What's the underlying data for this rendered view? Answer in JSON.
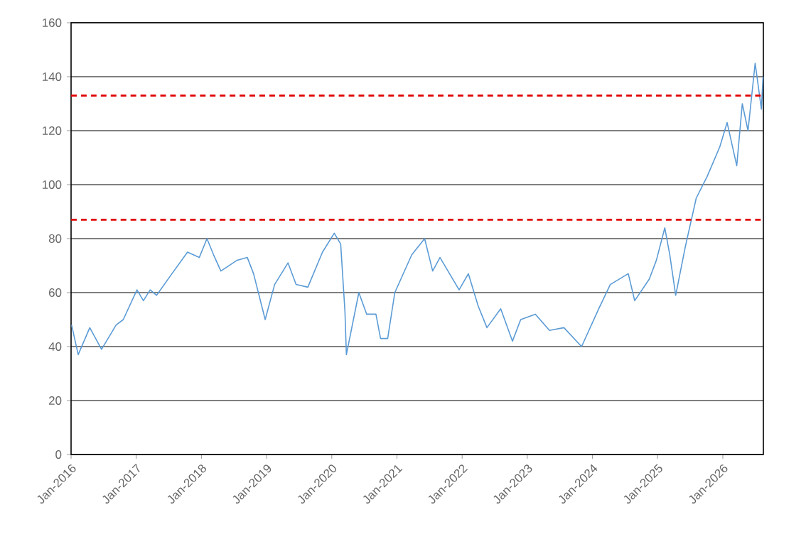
{
  "chart_data": {
    "type": "line",
    "x": [
      "2016-01-04",
      "2016-02-10",
      "2016-04-15",
      "2016-06-20",
      "2016-09-10",
      "2016-10-20",
      "2017-01-05",
      "2017-02-10",
      "2017-03-20",
      "2017-04-25",
      "2017-07-20",
      "2017-10-15",
      "2017-12-20",
      "2018-02-01",
      "2018-03-10",
      "2018-04-20",
      "2018-07-20",
      "2018-09-15",
      "2018-10-20",
      "2018-12-24",
      "2019-02-15",
      "2019-05-01",
      "2019-06-15",
      "2019-08-20",
      "2019-11-10",
      "2020-01-15",
      "2020-02-20",
      "2020-03-15",
      "2020-03-23",
      "2020-06-01",
      "2020-07-15",
      "2020-09-05",
      "2020-10-01",
      "2020-11-10",
      "2020-12-20",
      "2021-03-25",
      "2021-06-05",
      "2021-07-20",
      "2021-08-30",
      "2021-12-15",
      "2022-02-05",
      "2022-04-01",
      "2022-05-20",
      "2022-08-05",
      "2022-10-10",
      "2022-11-25",
      "2023-02-15",
      "2023-05-05",
      "2023-07-25",
      "2023-11-01",
      "2024-02-05",
      "2024-04-10",
      "2024-07-20",
      "2024-08-25",
      "2024-11-15",
      "2024-12-25",
      "2025-02-10",
      "2025-03-10",
      "2025-04-12",
      "2025-06-05",
      "2025-08-05",
      "2025-10-05",
      "2025-12-15",
      "2026-01-25",
      "2026-03-20",
      "2026-04-20",
      "2026-05-22",
      "2026-07-01",
      "2026-08-05",
      "2026-08-14"
    ],
    "series": [
      {
        "color": "#5b9bd5",
        "values": [
          48,
          37,
          47,
          39,
          48,
          50,
          61,
          57,
          61,
          59,
          67,
          75,
          73,
          80,
          74,
          68,
          72,
          73,
          67,
          50,
          63,
          71,
          63,
          62,
          75,
          82,
          78,
          53,
          37,
          60,
          52,
          52,
          43,
          43,
          60,
          74,
          80,
          68,
          73,
          61,
          67,
          55,
          47,
          54,
          42,
          50,
          52,
          46,
          47,
          40,
          54,
          63,
          67,
          57,
          65,
          72,
          84,
          74,
          59,
          77,
          95,
          103,
          114,
          123,
          107,
          130,
          120,
          145,
          128,
          140
        ]
      }
    ],
    "xlim": [
      "2016-01-01",
      "2026-08-16"
    ],
    "xticks": [
      {
        "value": "2016-01",
        "label": "Jan-2016"
      },
      {
        "value": "2017-01",
        "label": "Jan-2017"
      },
      {
        "value": "2018-01",
        "label": "Jan-2018"
      },
      {
        "value": "2019-01",
        "label": "Jan-2019"
      },
      {
        "value": "2020-01",
        "label": "Jan-2020"
      },
      {
        "value": "2021-01",
        "label": "Jan-2021"
      },
      {
        "value": "2022-01",
        "label": "Jan-2022"
      },
      {
        "value": "2023-01",
        "label": "Jan-2023"
      },
      {
        "value": "2024-01",
        "label": "Jan-2024"
      },
      {
        "value": "2025-01",
        "label": "Jan-2025"
      },
      {
        "value": "2026-01",
        "label": "Jan-2026"
      }
    ],
    "ylim": [
      0,
      160
    ],
    "yticks": [
      0,
      20,
      40,
      60,
      80,
      100,
      120,
      140,
      160
    ],
    "grid": "y",
    "ref_lines": [
      {
        "axis": "y",
        "value": 133,
        "color": "#e00000",
        "line_style": "dashed"
      },
      {
        "axis": "y",
        "value": 87,
        "color": "#e00000",
        "line_style": "dashed"
      }
    ]
  }
}
